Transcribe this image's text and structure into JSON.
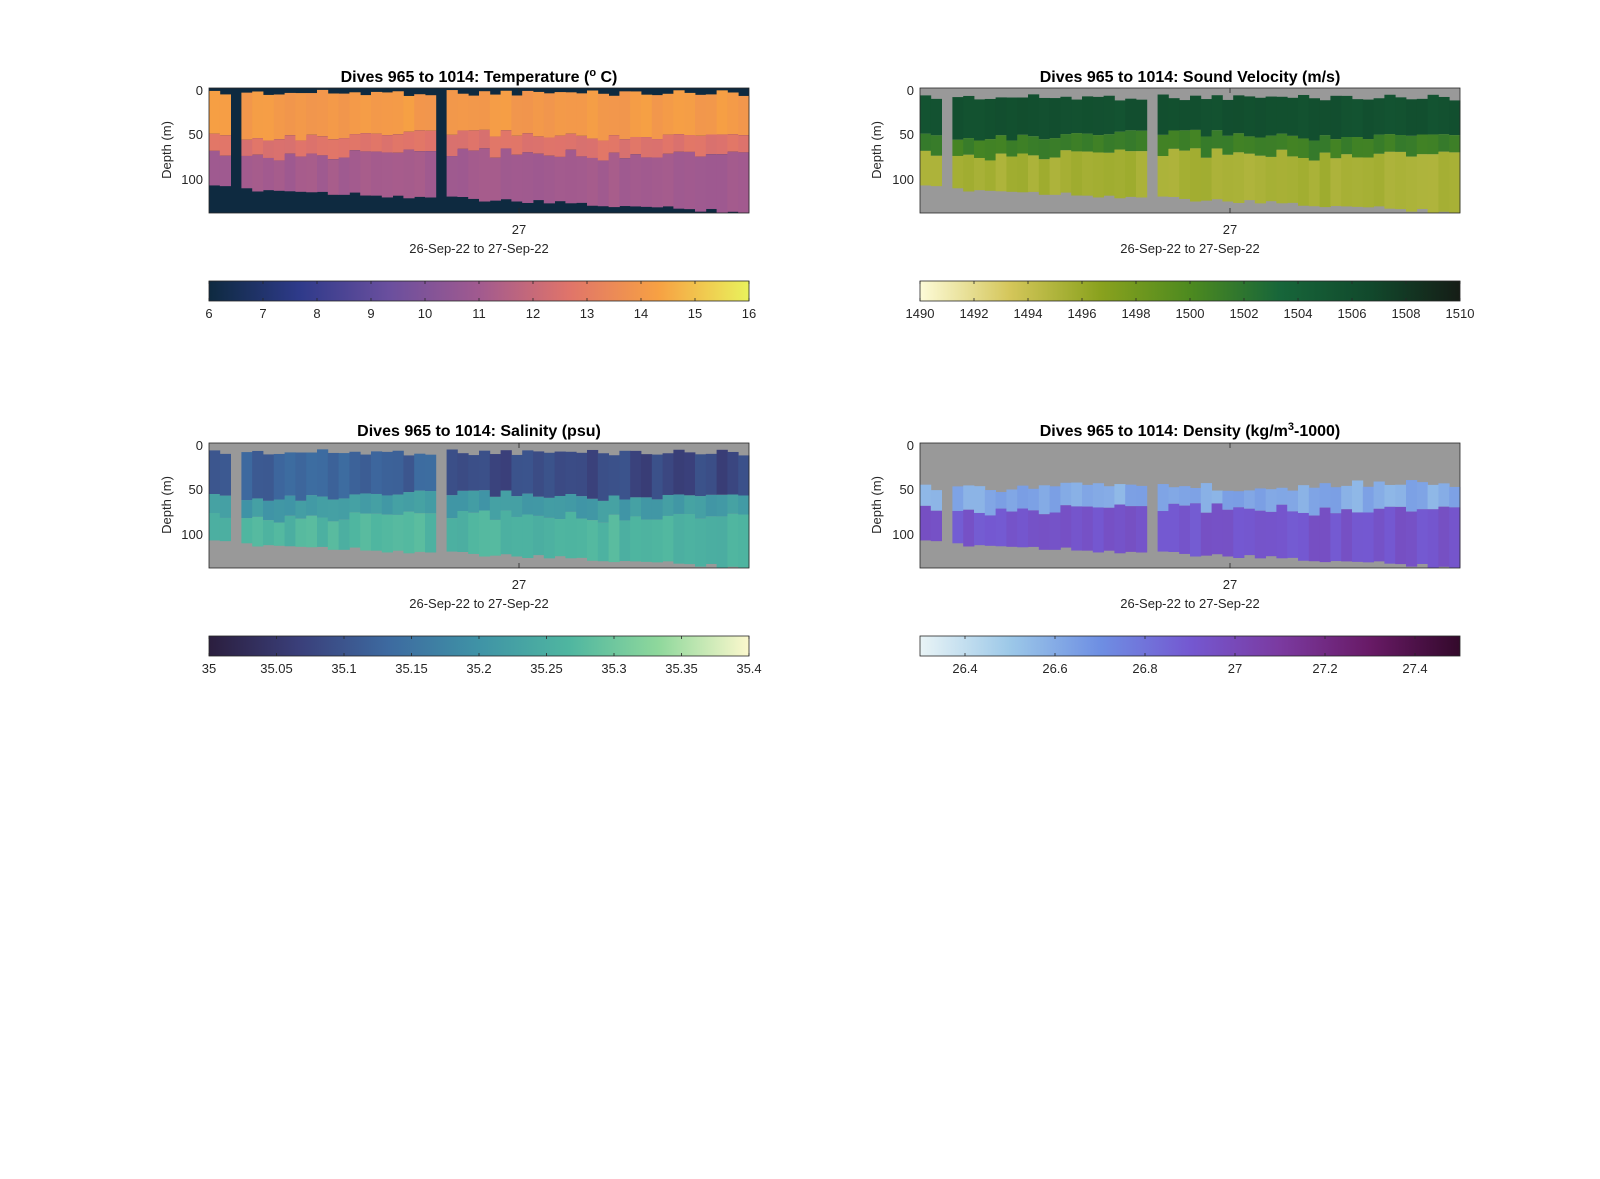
{
  "chart_data": [
    {
      "type": "heatmap",
      "title_parts": [
        "Dives 965 to 1014: Temperature (",
        "o",
        " C)"
      ],
      "ylabel": "Depth (m)",
      "xlabel": "26-Sep-22 to 27-Sep-22",
      "x_tick_labels": [
        "27"
      ],
      "y_ticks": [
        "0",
        "50",
        "100"
      ],
      "ylim": [
        0,
        140
      ],
      "y_direction": "reversed",
      "colorbar": {
        "min": 6,
        "max": 16,
        "tick_labels": [
          "6",
          "7",
          "8",
          "9",
          "10",
          "11",
          "12",
          "13",
          "14",
          "15",
          "16"
        ],
        "colors": [
          "#0e2a40",
          "#2e3a8a",
          "#6a4f9e",
          "#a15a8f",
          "#e0746a",
          "#f7a143",
          "#e9f25c"
        ]
      },
      "missing_color": "#0e2a40",
      "gap_dives": [
        2,
        21
      ],
      "layers": [
        {
          "depth_range": "surface to ~50 m",
          "value": 14.3
        },
        {
          "depth_range": "~50 to ~70 m",
          "value": 12.5
        },
        {
          "depth_range": "~70 m to bottom",
          "value": 10.9
        }
      ]
    },
    {
      "type": "heatmap",
      "title_parts": [
        "Dives 965 to 1014: Sound Velocity (m/s)"
      ],
      "ylabel": "Depth (m)",
      "xlabel": "26-Sep-22 to 27-Sep-22",
      "x_tick_labels": [
        "27"
      ],
      "y_ticks": [
        "0",
        "50",
        "100"
      ],
      "ylim": [
        0,
        140
      ],
      "y_direction": "reversed",
      "colorbar": {
        "min": 1490,
        "max": 1510,
        "tick_labels": [
          "1490",
          "1492",
          "1494",
          "1496",
          "1498",
          "1500",
          "1502",
          "1504",
          "1506",
          "1508",
          "1510"
        ],
        "colors": [
          "#fdfbd8",
          "#d4c65a",
          "#8aa21e",
          "#4d8a1f",
          "#17663a",
          "#11492c",
          "#151d16"
        ]
      },
      "missing_color": "#999999",
      "gap_dives": [
        2,
        21
      ],
      "layers": [
        {
          "depth_range": "surface to ~50 m",
          "value": 1505.5
        },
        {
          "depth_range": "~50 to ~70 m",
          "value": 1500.5
        },
        {
          "depth_range": "~70 m to bottom",
          "value": 1495.0
        }
      ]
    },
    {
      "type": "heatmap",
      "title_parts": [
        "Dives 965 to 1014: Salinity (psu)"
      ],
      "ylabel": "Depth (m)",
      "xlabel": "26-Sep-22 to 27-Sep-22",
      "x_tick_labels": [
        "27"
      ],
      "y_ticks": [
        "0",
        "50",
        "100"
      ],
      "ylim": [
        0,
        140
      ],
      "y_direction": "reversed",
      "colorbar": {
        "min": 35,
        "max": 35.4,
        "tick_labels": [
          "35",
          "35.05",
          "35.1",
          "35.15",
          "35.2",
          "35.25",
          "35.3",
          "35.35",
          "35.4"
        ],
        "colors": [
          "#2b1e3e",
          "#3a3f7a",
          "#3d6aa0",
          "#3f93a6",
          "#4fb6a0",
          "#8fd89c",
          "#fcf8cd"
        ]
      },
      "missing_color": "#999999",
      "gap_dives": [
        2,
        21
      ],
      "layers": [
        {
          "depth_range": "surface to ~60 m",
          "value": 35.11
        },
        {
          "depth_range": "~60 to ~85 m",
          "value": 35.2
        },
        {
          "depth_range": "~85 m to bottom",
          "value": 35.25
        }
      ]
    },
    {
      "type": "heatmap",
      "title_parts": [
        "Dives 965 to 1014: Density (kg/m",
        "3",
        "-1000)"
      ],
      "ylabel": "Depth (m)",
      "xlabel": "26-Sep-22 to 27-Sep-22",
      "x_tick_labels": [
        "27"
      ],
      "y_ticks": [
        "0",
        "50",
        "100"
      ],
      "ylim": [
        0,
        140
      ],
      "y_direction": "reversed",
      "colorbar": {
        "min": 26.3,
        "max": 27.5,
        "tick_labels": [
          "26.4",
          "26.6",
          "26.8",
          "27",
          "27.2",
          "27.4"
        ],
        "colors": [
          "#e9f4f6",
          "#9cc8e8",
          "#6e8fe3",
          "#7458d1",
          "#7b3aa0",
          "#681a66",
          "#33092b"
        ]
      },
      "missing_color": "#999999",
      "gap_dives": [
        2,
        21
      ],
      "layers": [
        {
          "depth_range": "~50 to ~75 m",
          "value": 26.6
        },
        {
          "depth_range": "~75 m to bottom",
          "value": 26.9
        }
      ]
    }
  ]
}
